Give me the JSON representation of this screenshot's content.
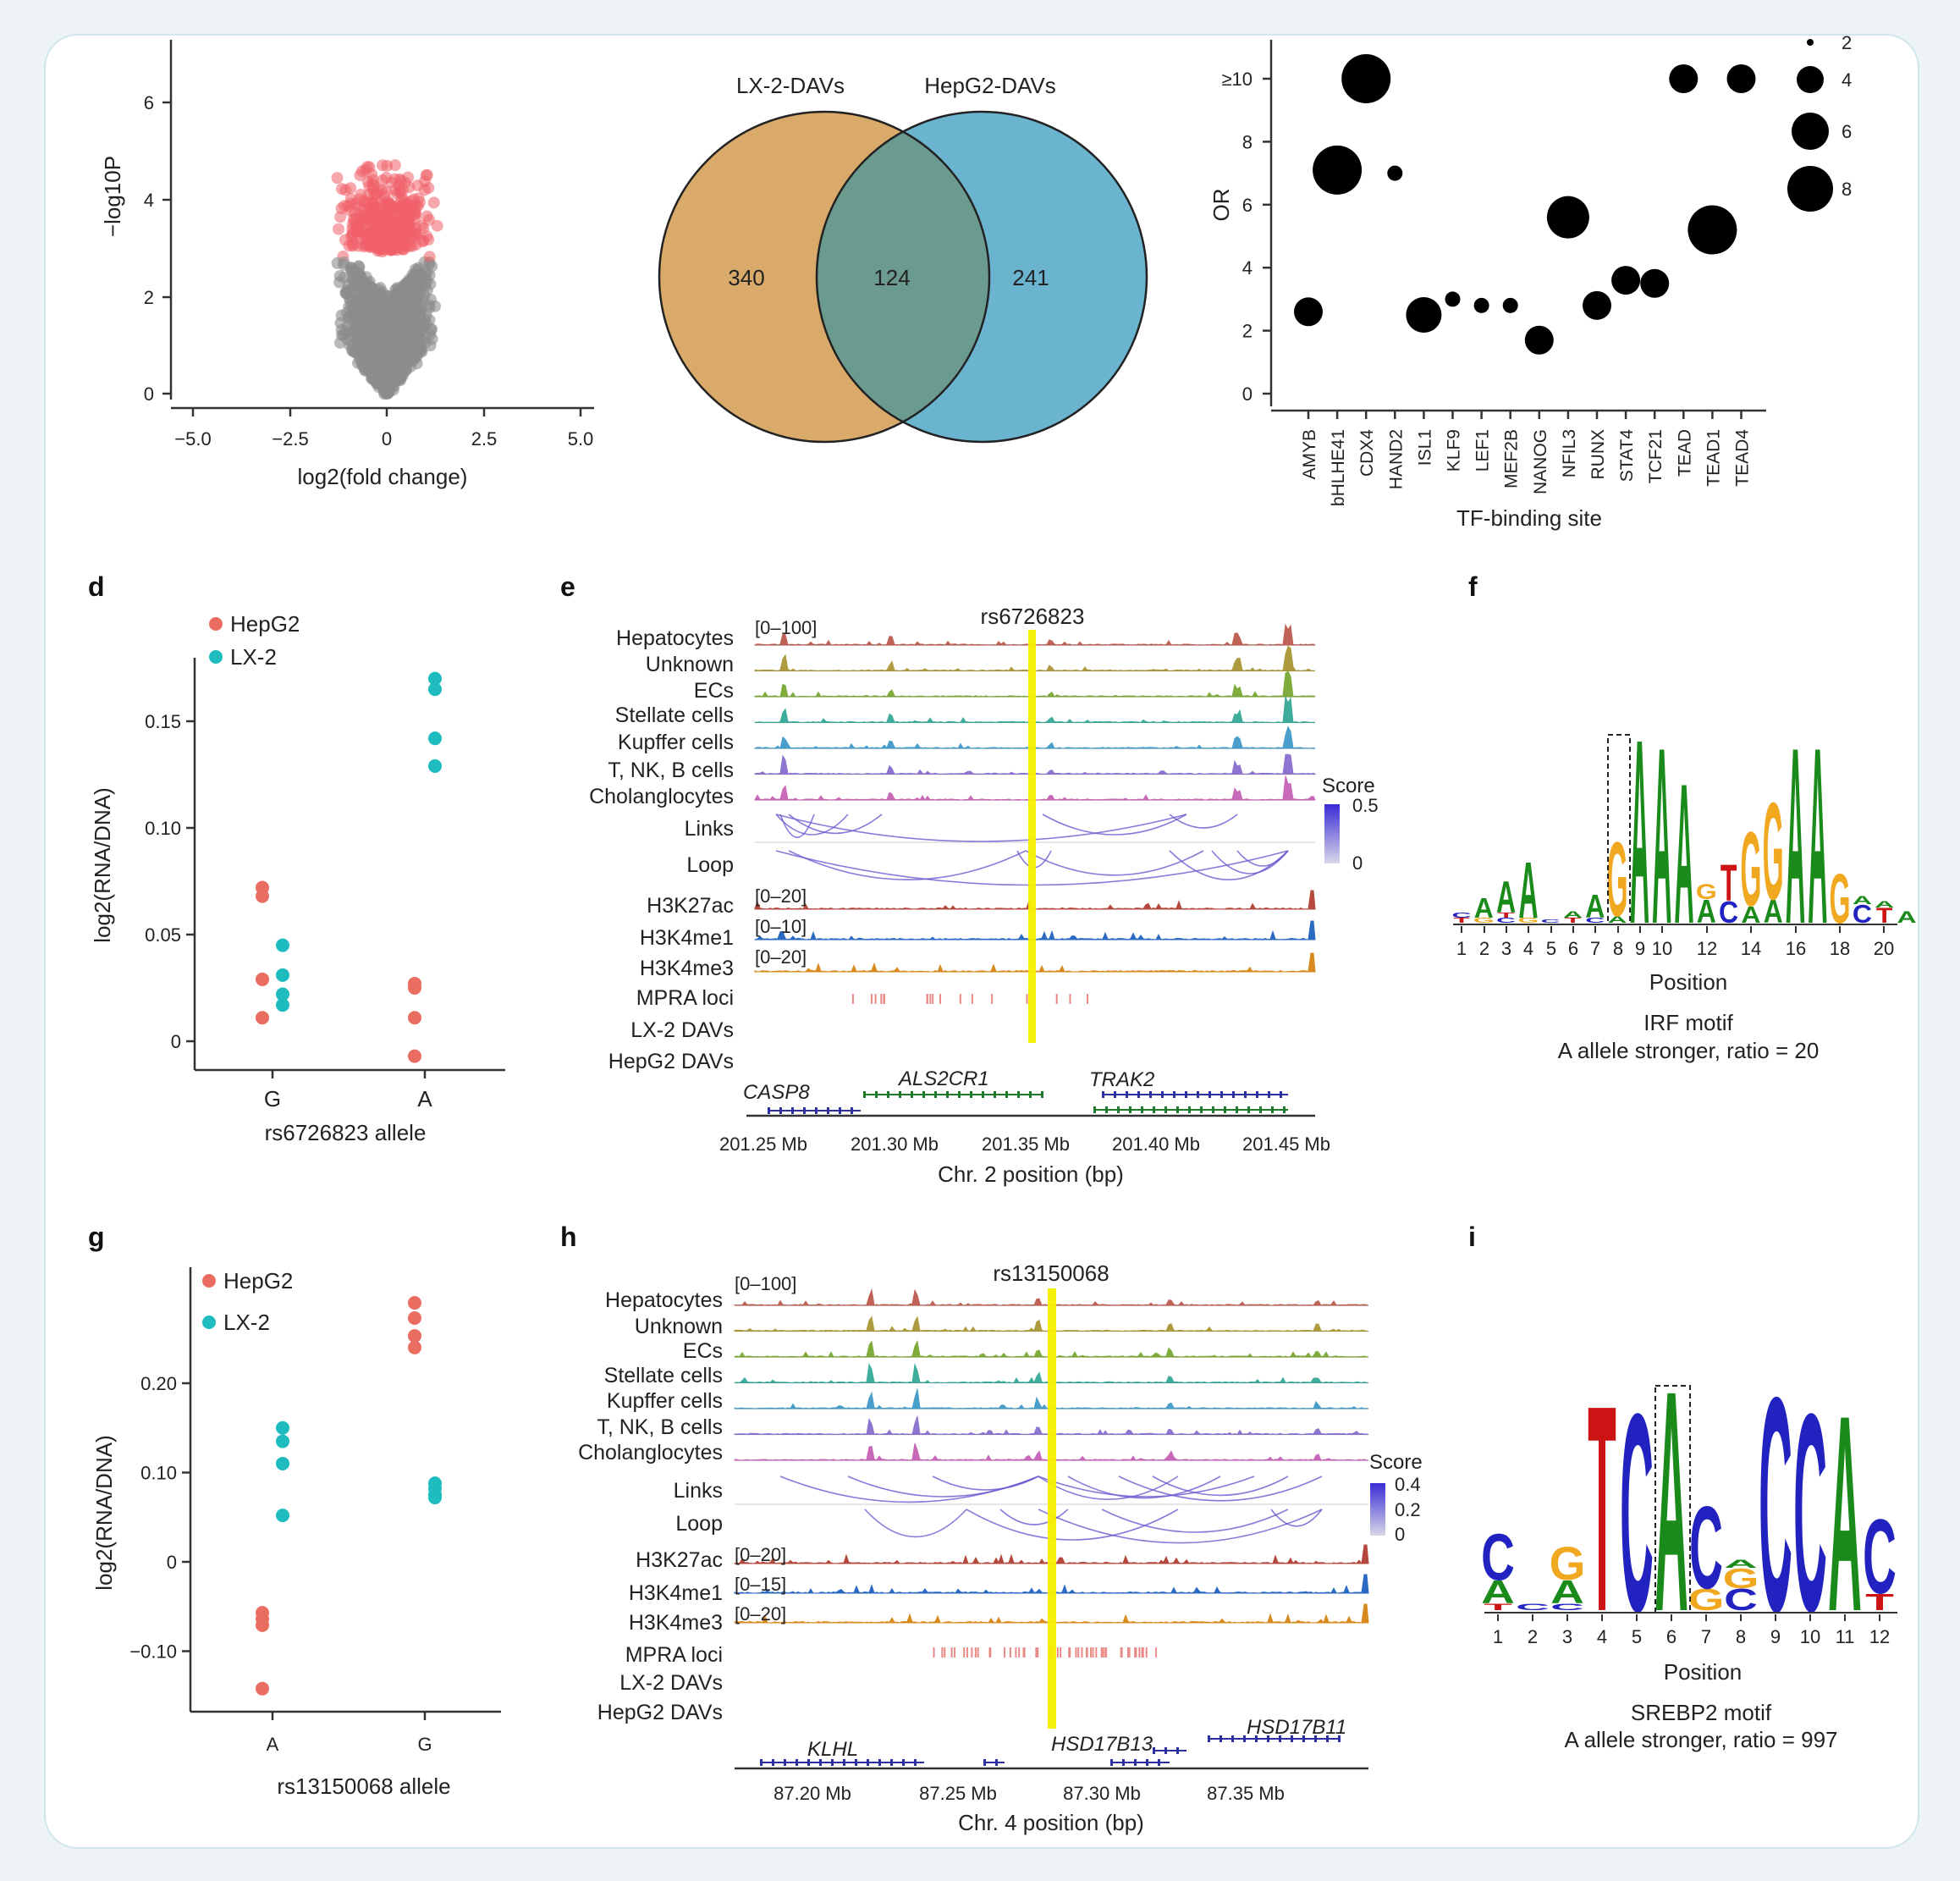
{
  "panels": {
    "a": {
      "ylabel": "−log10P",
      "xlabel": "log2(fold change)",
      "xticks": [
        "−5.0",
        "−2.5",
        "0",
        "2.5",
        "5.0"
      ],
      "yticks": [
        "0",
        "2",
        "4",
        "6"
      ]
    },
    "b": {
      "left_label": "LX-2-DAVs",
      "right_label": "HepG2-DAVs",
      "left_only": "340",
      "overlap": "124",
      "right_only": "241"
    },
    "c": {
      "ylabel": "OR",
      "xlabel": "TF-binding site",
      "yticks": [
        "0",
        "2",
        "4",
        "6",
        "8",
        "≥10"
      ],
      "size_legend": [
        "2",
        "4",
        "6",
        "8"
      ]
    },
    "d": {
      "letter": "d",
      "legend": [
        "HepG2",
        "LX-2"
      ],
      "ylabel": "log2(RNA/DNA)",
      "xlabel": "rs6726823 allele",
      "xcats": [
        "G",
        "A"
      ],
      "yticks": [
        "0",
        "0.05",
        "0.10",
        "0.15"
      ]
    },
    "e": {
      "letter": "e",
      "snp": "rs6726823",
      "range_top": "[0–100]",
      "tracks": [
        "Hepatocytes",
        "Unknown",
        "ECs",
        "Stellate cells",
        "Kupffer cells",
        "T, NK, B cells",
        "Cholanglocytes"
      ],
      "links": "Links",
      "loop": "Loop",
      "hist": [
        "H3K27ac",
        "H3K4me1",
        "H3K4me3"
      ],
      "hist_ranges": [
        "[0–20]",
        "[0–10]",
        "[0–20]"
      ],
      "loci": [
        "MPRA loci",
        "LX-2 DAVs",
        "HepG2 DAVs"
      ],
      "score_title": "Score",
      "score_max": "0.5",
      "score_min": "0",
      "genes": [
        "CASP8",
        "ALS2CR1",
        "TRAK2"
      ],
      "xticks": [
        "201.25 Mb",
        "201.30 Mb",
        "201.35 Mb",
        "201.40 Mb",
        "201.45 Mb"
      ],
      "xlabel": "Chr. 2 position (bp)"
    },
    "f": {
      "letter": "f",
      "xlabel": "Position",
      "xticks": [
        "1",
        "2",
        "3",
        "4",
        "5",
        "6",
        "7",
        "8",
        "9",
        "10",
        "12",
        "14",
        "16",
        "18",
        "20"
      ],
      "title": "IRF motif",
      "subtitle": "A allele stronger, ratio = 20"
    },
    "g": {
      "letter": "g",
      "legend": [
        "HepG2",
        "LX-2"
      ],
      "ylabel": "log2(RNA/DNA)",
      "xlabel": "rs13150068 allele",
      "xcats": [
        "A",
        "G"
      ],
      "yticks": [
        "−0.10",
        "0",
        "0.10",
        "0.20"
      ]
    },
    "h": {
      "letter": "h",
      "snp": "rs13150068",
      "range_top": "[0–100]",
      "tracks": [
        "Hepatocytes",
        "Unknown",
        "ECs",
        "Stellate cells",
        "Kupffer cells",
        "T, NK, B cells",
        "Cholanglocytes"
      ],
      "links": "Links",
      "loop": "Loop",
      "hist": [
        "H3K27ac",
        "H3K4me1",
        "H3K4me3"
      ],
      "hist_ranges": [
        "[0–20]",
        "[0–15]",
        "[0–20]"
      ],
      "loci": [
        "MPRA loci",
        "LX-2 DAVs",
        "HepG2 DAVs"
      ],
      "score_title": "Score",
      "score_ticks": [
        "0.4",
        "0.2",
        "0"
      ],
      "genes": [
        "KLHL",
        "HSD17B13",
        "HSD17B11"
      ],
      "xticks": [
        "87.20 Mb",
        "87.25 Mb",
        "87.30 Mb",
        "87.35 Mb"
      ],
      "xlabel": "Chr. 4 position (bp)"
    },
    "i": {
      "letter": "i",
      "xlabel": "Position",
      "xticks": [
        "1",
        "2",
        "3",
        "4",
        "5",
        "6",
        "7",
        "8",
        "9",
        "10",
        "11",
        "12"
      ],
      "title": "SREBP2 motif",
      "subtitle": "A allele stronger, ratio = 997"
    }
  },
  "colors": {
    "volcano_sig": "#f0606a",
    "volcano_ns": "#8c8c8c",
    "venn_left": "#d9aa6a",
    "venn_right": "#6bb4d0",
    "venn_overlap": "#6b9a8e",
    "hepg2": "#ea6d62",
    "lx2": "#1ebcbf",
    "highlight": "#f5ef00",
    "arc": "#6a5ad0"
  },
  "chart_data": [
    {
      "panel": "c",
      "type": "scatter",
      "categories": [
        "AMYB",
        "bHLHE41",
        "CDX4",
        "HAND2",
        "ISL1",
        "KLF9",
        "LEF1",
        "MEF2B",
        "NANOG",
        "NFIL3",
        "RUNX",
        "STAT4",
        "TCF21",
        "TEAD",
        "TEAD1",
        "TEAD4"
      ],
      "series": [
        {
          "values": [
            2.6,
            7.1,
            10,
            7.0,
            2.5,
            3.0,
            2.8,
            2.8,
            1.7,
            5.6,
            2.8,
            3.6,
            3.5,
            10,
            5.2,
            10
          ],
          "sizes": [
            3,
            6,
            6,
            1,
            4,
            1,
            1,
            1,
            3,
            5,
            3,
            3,
            3,
            3,
            6,
            3
          ]
        }
      ],
      "ylabel": "OR",
      "xlabel": "TF-binding site",
      "ylim": [
        0,
        10
      ]
    },
    {
      "panel": "d",
      "type": "scatter",
      "categories": [
        "G",
        "A"
      ],
      "series": [
        {
          "name": "HepG2",
          "points": [
            [
              0,
              0.072
            ],
            [
              0,
              0.068
            ],
            [
              0,
              0.029
            ],
            [
              0,
              0.011
            ],
            [
              1,
              0.027
            ],
            [
              1,
              0.025
            ],
            [
              1,
              0.011
            ],
            [
              1,
              -0.007
            ]
          ]
        },
        {
          "name": "LX-2",
          "points": [
            [
              0,
              0.045
            ],
            [
              0,
              0.031
            ],
            [
              0,
              0.022
            ],
            [
              0,
              0.017
            ],
            [
              1,
              0.17
            ],
            [
              1,
              0.165
            ],
            [
              1,
              0.142
            ],
            [
              1,
              0.129
            ]
          ]
        }
      ],
      "ylabel": "log2(RNA/DNA)",
      "xlabel": "rs6726823 allele",
      "ylim": [
        -0.01,
        0.18
      ]
    },
    {
      "panel": "g",
      "type": "scatter",
      "categories": [
        "A",
        "G"
      ],
      "series": [
        {
          "name": "HepG2",
          "points": [
            [
              0,
              -0.057
            ],
            [
              0,
              -0.064
            ],
            [
              0,
              -0.071
            ],
            [
              0,
              -0.142
            ],
            [
              1,
              0.29
            ],
            [
              1,
              0.273
            ],
            [
              1,
              0.253
            ],
            [
              1,
              0.24
            ]
          ]
        },
        {
          "name": "LX-2",
          "points": [
            [
              0,
              0.15
            ],
            [
              0,
              0.135
            ],
            [
              0,
              0.11
            ],
            [
              0,
              0.052
            ],
            [
              1,
              0.088
            ],
            [
              1,
              0.082
            ],
            [
              1,
              0.075
            ],
            [
              1,
              0.072
            ]
          ]
        }
      ],
      "ylabel": "log2(RNA/DNA)",
      "xlabel": "rs13150068 allele",
      "ylim": [
        -0.17,
        0.31
      ]
    }
  ]
}
